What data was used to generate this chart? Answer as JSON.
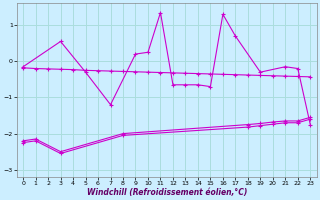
{
  "bg_color": "#cceeff",
  "line_color": "#cc00cc",
  "grid_color": "#aadddd",
  "xlabel": "Windchill (Refroidissement éolien,°C)",
  "ylim": [
    -3.2,
    1.6
  ],
  "xlim": [
    -0.5,
    23.5
  ],
  "yticks": [
    -3,
    -2,
    -1,
    0,
    1
  ],
  "xticks": [
    0,
    1,
    2,
    3,
    4,
    5,
    6,
    7,
    8,
    9,
    10,
    11,
    12,
    13,
    14,
    15,
    16,
    17,
    18,
    19,
    20,
    21,
    22,
    23
  ],
  "line_osc_x": [
    0,
    3,
    5,
    7,
    9,
    10,
    11,
    12,
    13,
    14,
    15,
    16,
    17,
    19,
    21,
    22,
    23
  ],
  "line_osc_y": [
    -0.15,
    0.55,
    -0.3,
    -1.2,
    0.2,
    0.25,
    1.35,
    -0.65,
    -0.65,
    -0.65,
    -0.7,
    1.3,
    0.7,
    -0.3,
    -0.15,
    -0.2,
    -1.75
  ],
  "line_flat_x": [
    0,
    1,
    2,
    3,
    4,
    5,
    6,
    7,
    8,
    9,
    10,
    11,
    12,
    13,
    14,
    15,
    16,
    17,
    18,
    19,
    20,
    21,
    22,
    23
  ],
  "line_flat_y": [
    -0.18,
    -0.2,
    -0.21,
    -0.22,
    -0.23,
    -0.25,
    -0.26,
    -0.27,
    -0.28,
    -0.29,
    -0.3,
    -0.31,
    -0.32,
    -0.33,
    -0.34,
    -0.35,
    -0.36,
    -0.37,
    -0.38,
    -0.39,
    -0.4,
    -0.41,
    -0.42,
    -0.43
  ],
  "line_low1_x": [
    0,
    1,
    3,
    8,
    18,
    19,
    20,
    21,
    22,
    23
  ],
  "line_low1_y": [
    -2.2,
    -2.15,
    -2.5,
    -2.0,
    -1.75,
    -1.72,
    -1.68,
    -1.65,
    -1.65,
    -1.55
  ],
  "line_low2_x": [
    0,
    1,
    3,
    8,
    18,
    19,
    20,
    21,
    22,
    23
  ],
  "line_low2_y": [
    -2.25,
    -2.2,
    -2.55,
    -2.05,
    -1.82,
    -1.78,
    -1.74,
    -1.7,
    -1.7,
    -1.6
  ]
}
